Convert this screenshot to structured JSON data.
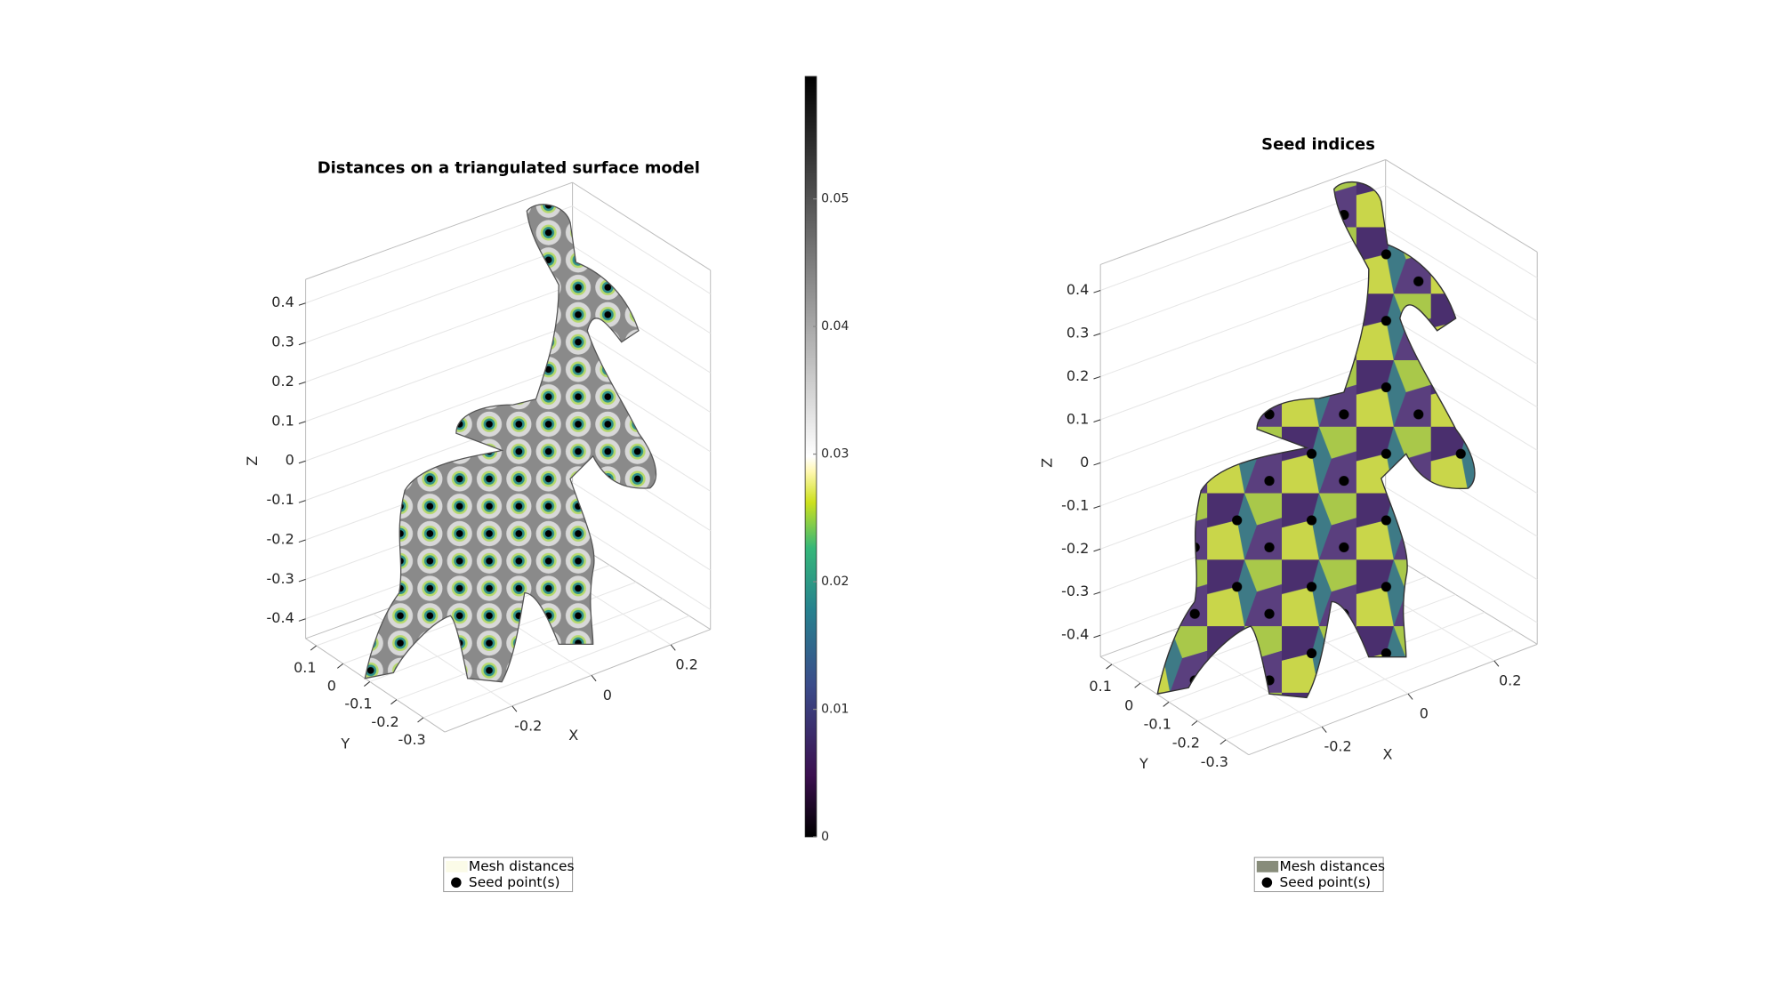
{
  "chart_data": [
    {
      "type": "surface3d",
      "title": "Distances on a triangulated surface model",
      "xlabel": "X",
      "ylabel": "Y",
      "zlabel": "Z",
      "xlim": [
        -0.37,
        0.3
      ],
      "xticks": [
        -0.2,
        0,
        0.2
      ],
      "ylim": [
        -0.38,
        0.14
      ],
      "yticks": [
        0.1,
        0,
        -0.1,
        -0.2,
        -0.3
      ],
      "zlim": [
        -0.45,
        0.46
      ],
      "zticks": [
        0.4,
        0.3,
        0.2,
        0.1,
        0,
        -0.1,
        -0.2,
        -0.3,
        -0.4
      ],
      "grid": true,
      "series": [
        {
          "name": "Mesh distances",
          "color": "#fbfbe8"
        },
        {
          "name": "Seed point(s)",
          "color": "#000000"
        }
      ],
      "colorbar": {
        "clim": [
          0,
          0.0596
        ],
        "ticks": [
          0,
          0.01,
          0.02,
          0.03,
          0.04,
          0.05
        ]
      }
    },
    {
      "type": "surface3d",
      "title": "Seed indices",
      "xlabel": "X",
      "ylabel": "Y",
      "zlabel": "Z",
      "xlim": [
        -0.37,
        0.3
      ],
      "xticks": [
        -0.2,
        0,
        0.2
      ],
      "ylim": [
        -0.38,
        0.14
      ],
      "yticks": [
        0.1,
        0,
        -0.1,
        -0.2,
        -0.3
      ],
      "zlim": [
        -0.45,
        0.46
      ],
      "zticks": [
        0.4,
        0.3,
        0.2,
        0.1,
        0,
        -0.1,
        -0.2,
        -0.3,
        -0.4
      ],
      "grid": true,
      "series": [
        {
          "name": "Mesh distances",
          "color": "#878c7a"
        },
        {
          "name": "Seed point(s)",
          "color": "#000000"
        }
      ]
    }
  ]
}
